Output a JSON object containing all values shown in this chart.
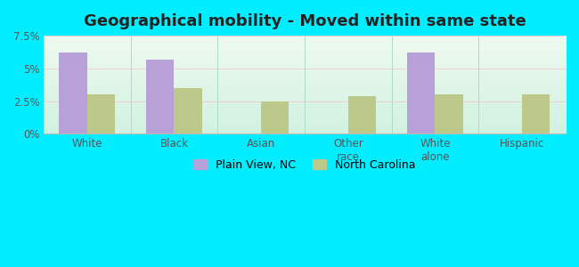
{
  "title": "Geographical mobility - Moved within same state",
  "categories": [
    "White",
    "Black",
    "Asian",
    "Other\nrace",
    "White\nalone",
    "Hispanic"
  ],
  "plain_view": [
    6.2,
    5.7,
    0,
    0,
    6.2,
    0
  ],
  "north_carolina": [
    3.0,
    3.5,
    2.5,
    2.9,
    3.0,
    3.0
  ],
  "plain_view_color": "#b8a0d8",
  "nc_color": "#bcc98a",
  "outer_background": "#00eeff",
  "ylim": [
    0,
    7.5
  ],
  "yticks": [
    0,
    2.5,
    5.0,
    7.5
  ],
  "ytick_labels": [
    "0%",
    "2.5%",
    "5%",
    "7.5%"
  ],
  "legend_label1": "Plain View, NC",
  "legend_label2": "North Carolina",
  "bar_width": 0.32,
  "title_fontsize": 13
}
